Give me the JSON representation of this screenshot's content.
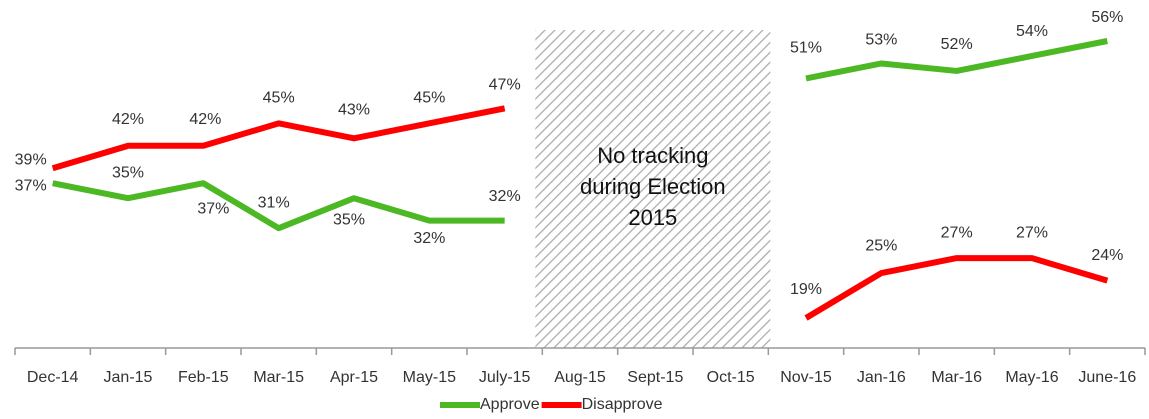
{
  "chart_data": {
    "type": "line",
    "categories": [
      "Dec-14",
      "Jan-15",
      "Feb-15",
      "Mar-15",
      "Apr-15",
      "May-15",
      "July-15",
      "Aug-15",
      "Sept-15",
      "Oct-15",
      "Nov-15",
      "Jan-16",
      "Mar-16",
      "May-16",
      "June-16"
    ],
    "series": [
      {
        "name": "Approve",
        "color": "#4cb824",
        "values": [
          37,
          35,
          37,
          31,
          35,
          32,
          32,
          null,
          null,
          null,
          51,
          53,
          52,
          54,
          56
        ],
        "value_labels": [
          "37%",
          "35%",
          "37%",
          "31%",
          "35%",
          "32%",
          "32%",
          null,
          null,
          null,
          "51%",
          "53%",
          "52%",
          "54%",
          "56%"
        ]
      },
      {
        "name": "Disapprove",
        "color": "#ff0000",
        "values": [
          39,
          42,
          42,
          45,
          43,
          45,
          47,
          null,
          null,
          null,
          19,
          25,
          27,
          27,
          24
        ],
        "value_labels": [
          "39%",
          "42%",
          "42%",
          "45%",
          "43%",
          "45%",
          "47%",
          null,
          null,
          null,
          "19%",
          "25%",
          "27%",
          "27%",
          "24%"
        ]
      }
    ],
    "annotation": [
      "No tracking",
      "during Election",
      "2015"
    ],
    "legend": "bottom"
  }
}
